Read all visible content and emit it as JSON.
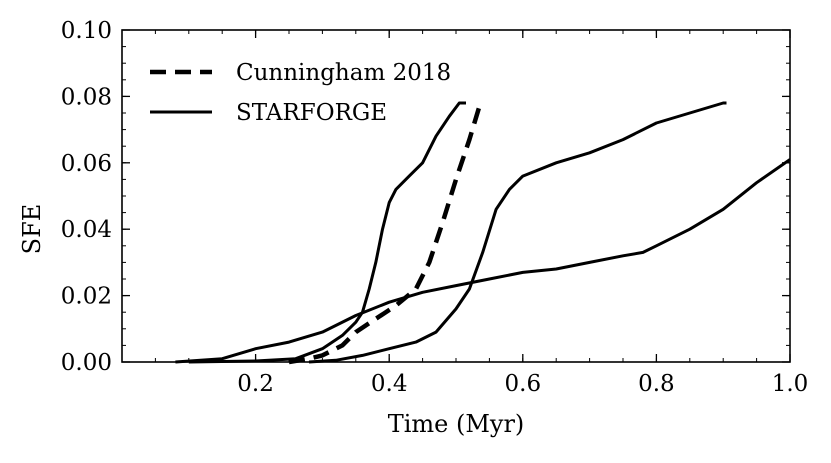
{
  "chart_data": {
    "type": "line",
    "title": "",
    "xlabel": "Time (Myr)",
    "ylabel": "SFE",
    "xlim": [
      0.0,
      1.0
    ],
    "ylim": [
      0.0,
      0.1
    ],
    "x_ticks": [
      0.2,
      0.4,
      0.6,
      0.8,
      1.0
    ],
    "x_tick_labels": [
      "0.2",
      "0.4",
      "0.6",
      "0.8",
      "1.0"
    ],
    "x_minor_step": 0.05,
    "y_ticks": [
      0.0,
      0.02,
      0.04,
      0.06,
      0.08,
      0.1
    ],
    "y_tick_labels": [
      "0.00",
      "0.02",
      "0.04",
      "0.06",
      "0.08",
      "0.10"
    ],
    "y_minor_step": 0.005,
    "grid": false,
    "legend_position": "top-left",
    "legend": [
      {
        "label": "Cunningham 2018",
        "style": "dashed"
      },
      {
        "label": "STARFORGE",
        "style": "solid"
      }
    ],
    "series": [
      {
        "name": "Cunningham 2018",
        "style": "dashed",
        "color": "#000000",
        "x": [
          0.25,
          0.28,
          0.3,
          0.33,
          0.35,
          0.38,
          0.41,
          0.44,
          0.46,
          0.48,
          0.5,
          0.52,
          0.535
        ],
        "y": [
          0.0,
          0.001,
          0.002,
          0.005,
          0.009,
          0.013,
          0.017,
          0.022,
          0.03,
          0.042,
          0.055,
          0.067,
          0.077
        ]
      },
      {
        "name": "STARFORGE 1",
        "style": "solid",
        "color": "#000000",
        "x": [
          0.1,
          0.2,
          0.26,
          0.3,
          0.33,
          0.35,
          0.36,
          0.37,
          0.38,
          0.39,
          0.4,
          0.41,
          0.43,
          0.45,
          0.47,
          0.49,
          0.505,
          0.515
        ],
        "y": [
          0.0,
          0.0003,
          0.001,
          0.004,
          0.008,
          0.012,
          0.015,
          0.022,
          0.03,
          0.04,
          0.048,
          0.052,
          0.056,
          0.06,
          0.068,
          0.074,
          0.078,
          0.078
        ]
      },
      {
        "name": "STARFORGE 2",
        "style": "solid",
        "color": "#000000",
        "x": [
          0.28,
          0.32,
          0.36,
          0.4,
          0.44,
          0.47,
          0.5,
          0.52,
          0.54,
          0.56,
          0.58,
          0.6,
          0.65,
          0.7,
          0.75,
          0.8,
          0.85,
          0.9,
          0.905
        ],
        "y": [
          0.0,
          0.0005,
          0.002,
          0.004,
          0.006,
          0.009,
          0.016,
          0.022,
          0.033,
          0.046,
          0.052,
          0.056,
          0.06,
          0.063,
          0.067,
          0.072,
          0.075,
          0.078,
          0.078
        ]
      },
      {
        "name": "STARFORGE 3",
        "style": "solid",
        "color": "#000000",
        "x": [
          0.08,
          0.15,
          0.2,
          0.25,
          0.3,
          0.35,
          0.4,
          0.45,
          0.5,
          0.55,
          0.6,
          0.65,
          0.7,
          0.75,
          0.78,
          0.8,
          0.85,
          0.9,
          0.95,
          1.0
        ],
        "y": [
          0.0,
          0.001,
          0.004,
          0.006,
          0.009,
          0.014,
          0.018,
          0.021,
          0.023,
          0.025,
          0.027,
          0.028,
          0.03,
          0.032,
          0.033,
          0.035,
          0.04,
          0.046,
          0.054,
          0.061
        ]
      }
    ]
  }
}
